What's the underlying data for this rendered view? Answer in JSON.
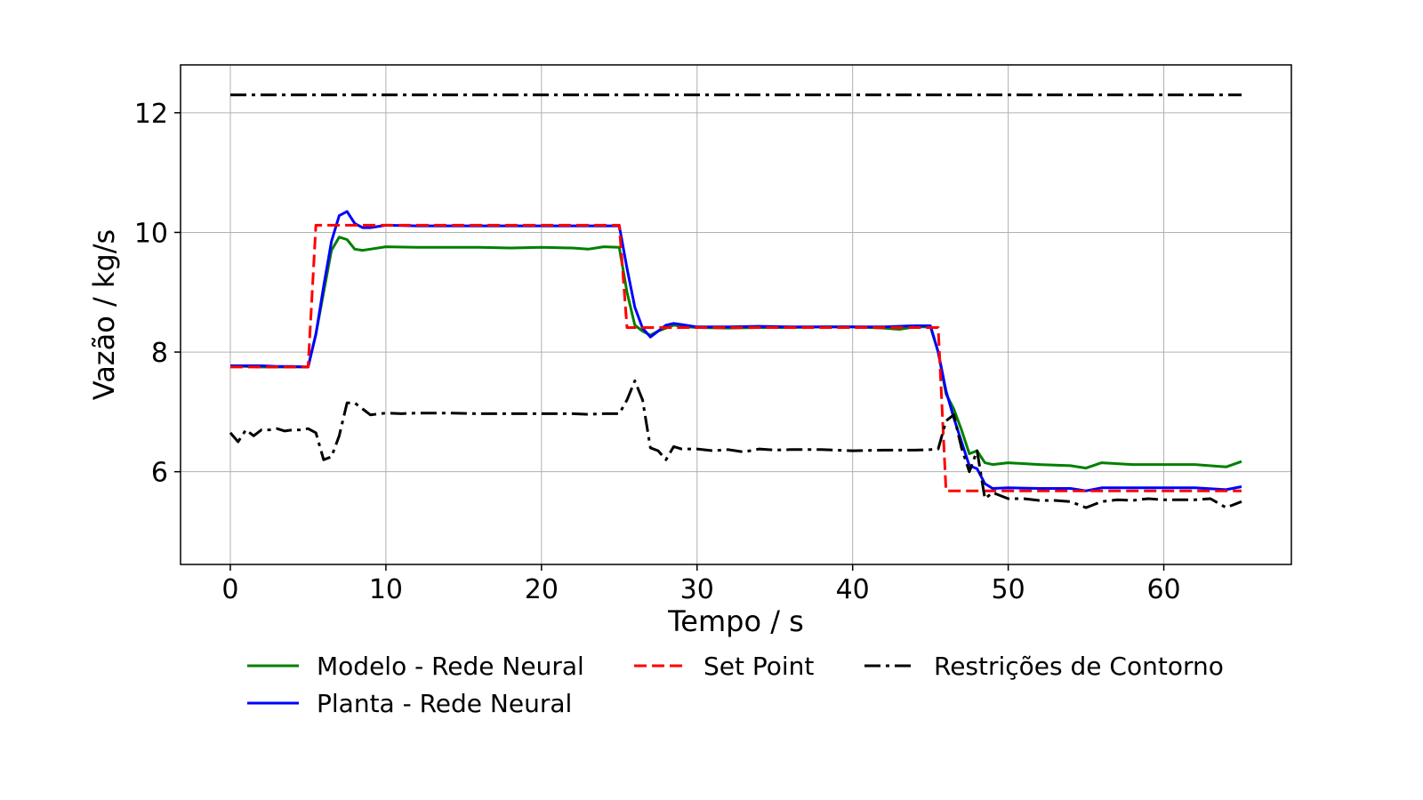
{
  "chart_data": {
    "type": "line",
    "title": "",
    "xlabel": "Tempo / s",
    "ylabel": "Vazão / kg/s",
    "xlim": [
      -3.2,
      68.2
    ],
    "ylim": [
      4.45,
      12.8
    ],
    "xticks": [
      0,
      10,
      20,
      30,
      40,
      50,
      60
    ],
    "yticks": [
      6,
      8,
      10,
      12
    ],
    "grid": true,
    "legend_position": "bottom, below axes, 3 columns",
    "series": [
      {
        "name": "Modelo - Rede Neural",
        "color": "#008000",
        "style": "solid",
        "x": [
          0,
          1,
          2,
          3,
          4,
          5,
          5.5,
          6,
          6.5,
          7,
          7.5,
          8,
          8.5,
          9,
          10,
          12,
          14,
          16,
          18,
          20,
          22,
          23,
          24,
          25,
          25.5,
          26,
          26.5,
          27,
          27.5,
          28,
          28.5,
          29,
          30,
          32,
          34,
          36,
          38,
          40,
          42,
          43,
          44,
          45,
          45.5,
          46,
          46.5,
          47,
          47.5,
          48,
          48.5,
          49,
          50,
          52,
          54,
          55,
          56,
          58,
          60,
          62,
          64,
          65
        ],
        "y": [
          7.77,
          7.76,
          7.75,
          7.75,
          7.75,
          7.75,
          8.3,
          9.0,
          9.7,
          9.92,
          9.88,
          9.72,
          9.7,
          9.72,
          9.76,
          9.75,
          9.75,
          9.75,
          9.74,
          9.75,
          9.74,
          9.72,
          9.76,
          9.75,
          9.0,
          8.45,
          8.35,
          8.28,
          8.35,
          8.4,
          8.45,
          8.43,
          8.41,
          8.4,
          8.41,
          8.41,
          8.42,
          8.42,
          8.4,
          8.38,
          8.42,
          8.42,
          8.0,
          7.3,
          7.05,
          6.7,
          6.3,
          6.35,
          6.15,
          6.12,
          6.15,
          6.12,
          6.1,
          6.06,
          6.15,
          6.12,
          6.12,
          6.12,
          6.08,
          6.17
        ]
      },
      {
        "name": "Planta - Rede Neural",
        "color": "#0000ff",
        "style": "solid",
        "x": [
          0,
          1,
          2,
          3,
          4,
          5,
          5.5,
          6,
          6.5,
          7,
          7.5,
          8,
          8.5,
          9,
          10,
          12,
          14,
          16,
          18,
          20,
          22,
          23,
          24,
          25,
          25.5,
          26,
          26.5,
          27,
          27.5,
          28,
          28.5,
          29,
          30,
          32,
          34,
          36,
          38,
          40,
          42,
          43,
          44,
          45,
          45.5,
          46,
          46.5,
          47,
          47.5,
          48,
          48.5,
          49,
          50,
          52,
          54,
          55,
          56,
          58,
          60,
          62,
          64,
          65
        ],
        "y": [
          7.77,
          7.77,
          7.77,
          7.76,
          7.76,
          7.75,
          8.3,
          9.1,
          9.85,
          10.28,
          10.35,
          10.15,
          10.08,
          10.08,
          10.12,
          10.11,
          10.11,
          10.11,
          10.11,
          10.11,
          10.11,
          10.11,
          10.11,
          10.11,
          9.4,
          8.75,
          8.4,
          8.25,
          8.35,
          8.45,
          8.48,
          8.46,
          8.42,
          8.42,
          8.43,
          8.42,
          8.42,
          8.42,
          8.42,
          8.43,
          8.44,
          8.44,
          8.0,
          7.35,
          6.9,
          6.5,
          6.1,
          6.05,
          5.8,
          5.72,
          5.73,
          5.72,
          5.72,
          5.68,
          5.73,
          5.73,
          5.73,
          5.73,
          5.7,
          5.75
        ]
      },
      {
        "name": "Set Point",
        "color": "#ff0000",
        "style": "dashed",
        "x": [
          0,
          5,
          5.5,
          25,
          25.5,
          45.5,
          46,
          65
        ],
        "y": [
          7.75,
          7.75,
          10.12,
          10.12,
          8.41,
          8.41,
          5.68,
          5.68
        ]
      },
      {
        "name": "Restrições de Contorno",
        "color": "#000000",
        "style": "dashdot",
        "x": [
          0,
          0.5,
          1,
          1.5,
          2,
          2.5,
          3,
          3.5,
          4,
          4.5,
          5,
          5.5,
          6,
          6.5,
          7,
          7.5,
          8,
          8.5,
          9,
          10,
          11,
          12,
          14,
          16,
          18,
          20,
          22,
          23,
          24,
          25,
          25.5,
          26,
          26.5,
          27,
          27.5,
          28,
          28.5,
          29,
          30,
          31,
          32,
          33,
          34,
          35,
          36,
          38,
          40,
          42,
          44,
          45,
          45.5,
          46,
          46.5,
          47,
          47.5,
          48,
          48.5,
          49,
          50,
          51,
          52,
          53,
          54,
          55,
          56,
          57,
          58,
          59,
          60,
          61,
          62,
          63,
          64,
          65
        ],
        "y": [
          6.65,
          6.5,
          6.7,
          6.6,
          6.7,
          6.7,
          6.72,
          6.68,
          6.7,
          6.7,
          6.72,
          6.65,
          6.2,
          6.25,
          6.6,
          7.15,
          7.15,
          7.05,
          6.95,
          6.98,
          6.97,
          6.98,
          6.98,
          6.97,
          6.97,
          6.97,
          6.97,
          6.96,
          6.97,
          6.97,
          7.2,
          7.52,
          7.2,
          6.4,
          6.35,
          6.2,
          6.42,
          6.38,
          6.38,
          6.35,
          6.37,
          6.33,
          6.38,
          6.36,
          6.37,
          6.37,
          6.35,
          6.36,
          6.36,
          6.37,
          6.38,
          6.85,
          6.95,
          6.4,
          6.0,
          6.35,
          5.55,
          5.65,
          5.55,
          5.55,
          5.52,
          5.52,
          5.5,
          5.4,
          5.5,
          5.53,
          5.52,
          5.55,
          5.53,
          5.53,
          5.53,
          5.55,
          5.4,
          5.5
        ]
      },
      {
        "name": "",
        "color": "#000000",
        "style": "dashdot",
        "x": [
          0,
          65
        ],
        "y": [
          12.3,
          12.3
        ]
      }
    ],
    "legend": [
      {
        "label": "Modelo - Rede Neural",
        "color": "#008000",
        "style": "solid"
      },
      {
        "label": "Planta - Rede Neural",
        "color": "#0000ff",
        "style": "solid"
      },
      {
        "label": "Set Point",
        "color": "#ff0000",
        "style": "dashed"
      },
      {
        "label": "Restrições de Contorno",
        "color": "#000000",
        "style": "dashdot"
      }
    ]
  }
}
